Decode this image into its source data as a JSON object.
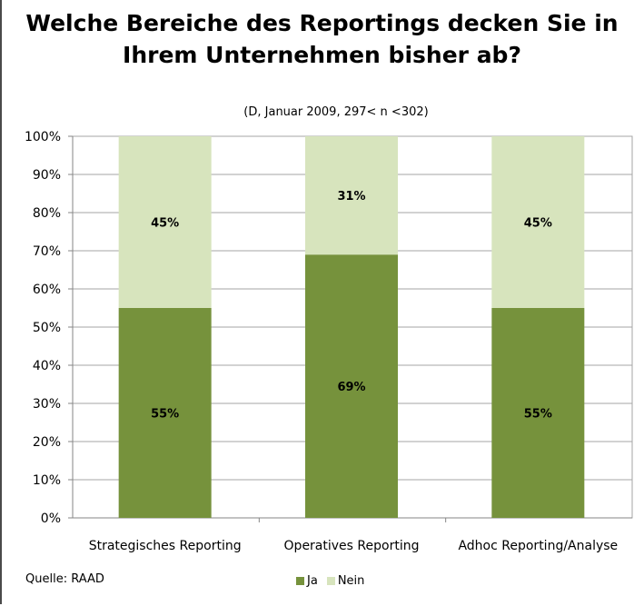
{
  "chart_data": {
    "type": "bar",
    "stacked": true,
    "title_line1": "Welche Bereiche des Reportings decken Sie in",
    "title_line2": "Ihrem Unternehmen bisher ab?",
    "subtitle": "(D, Januar 2009, 297< n <302)",
    "categories": [
      "Strategisches Reporting",
      "Operatives Reporting",
      "Adhoc Reporting/Analyse"
    ],
    "series": [
      {
        "name": "Ja",
        "values": [
          55,
          69,
          55
        ],
        "labels": [
          "55%",
          "69%",
          "55%"
        ],
        "color": "#76923c"
      },
      {
        "name": "Nein",
        "values": [
          45,
          31,
          45
        ],
        "labels": [
          "45%",
          "31%",
          "45%"
        ],
        "color": "#d7e4bd"
      }
    ],
    "ylim": [
      0,
      100
    ],
    "y_ticks": [
      "0%",
      "10%",
      "20%",
      "30%",
      "40%",
      "50%",
      "60%",
      "70%",
      "80%",
      "90%",
      "100%"
    ],
    "grid": true,
    "legend_position": "bottom",
    "source": "Quelle: RAAD"
  }
}
